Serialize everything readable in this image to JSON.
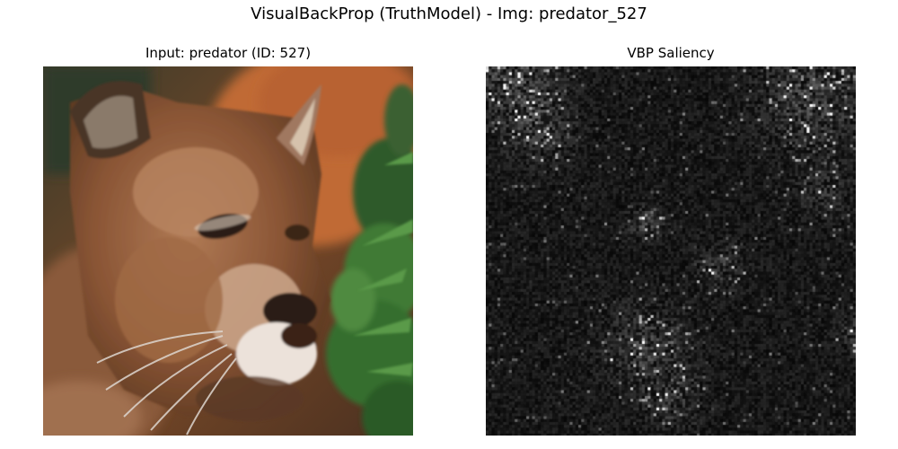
{
  "figure": {
    "title": "VisualBackProp (TruthModel) - Img: predator_527"
  },
  "panels": [
    {
      "title": "Input: predator (ID: 527)",
      "content": "photo of a cougar (mountain lion) face in profile with green foliage on the right"
    },
    {
      "title": "VBP Saliency",
      "content": "grayscale saliency heatmap, mostly black with faint scattered white speckles and brighter clusters near the bottom center and top right"
    }
  ],
  "colors": {
    "saliency_background": "#0b0b0b",
    "saliency_highlight": "#ffffff"
  }
}
